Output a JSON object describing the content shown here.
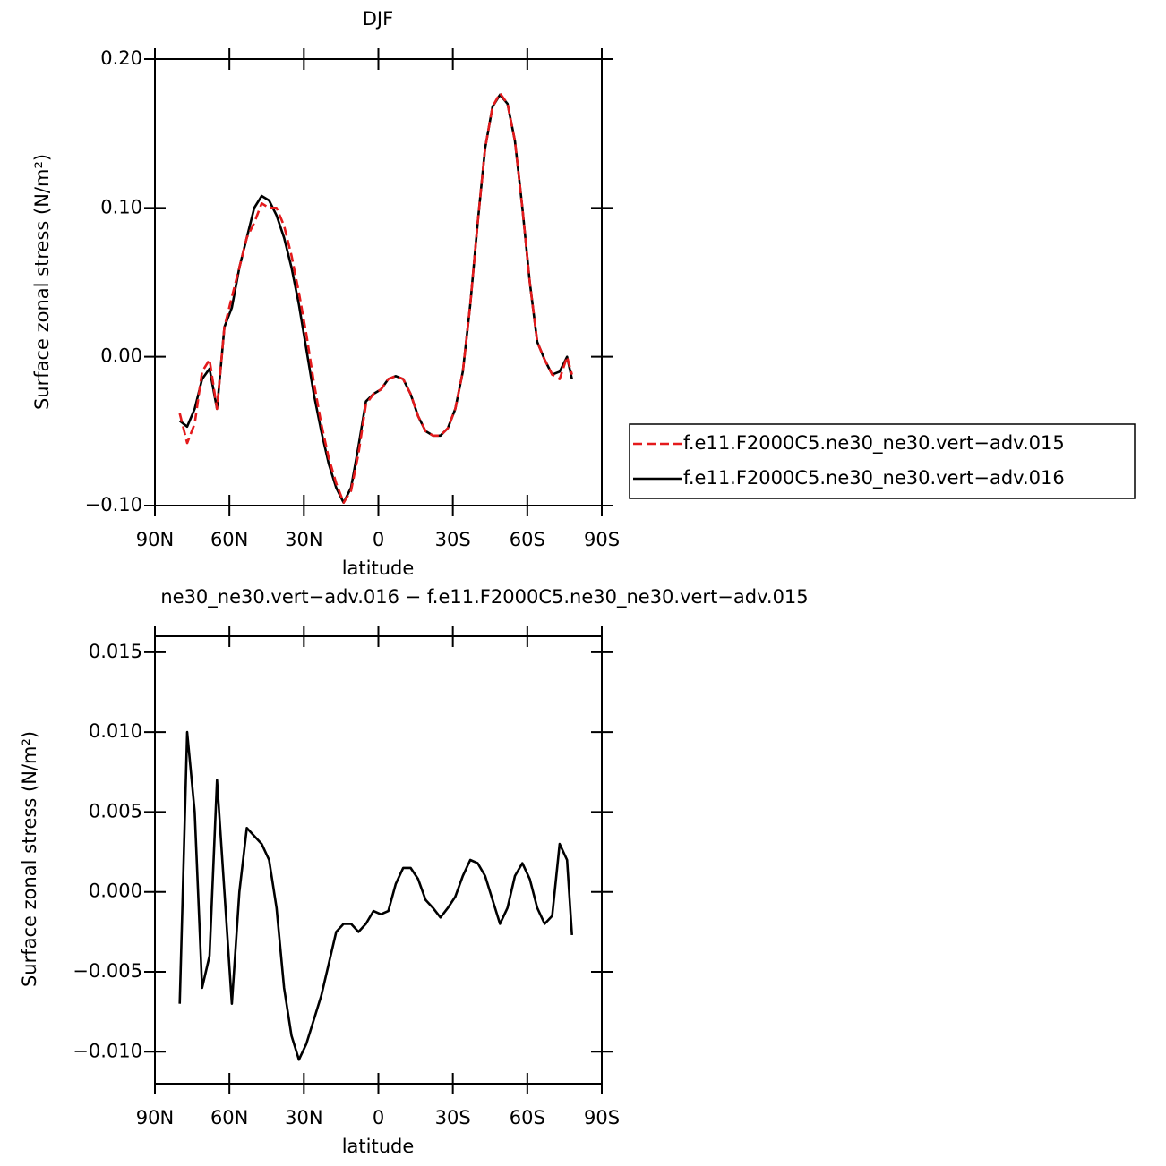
{
  "chart_data": [
    {
      "type": "line",
      "title": "DJF",
      "xlabel": "latitude",
      "ylabel": "Surface zonal stress (N/m²)",
      "x": [
        80,
        77,
        74,
        71,
        68,
        65,
        62,
        59,
        56,
        53,
        50,
        47,
        44,
        41,
        38,
        35,
        32,
        29,
        26,
        23,
        20,
        17,
        14,
        11,
        8,
        5,
        2,
        -1,
        -4,
        -7,
        -10,
        -13,
        -16,
        -19,
        -22,
        -25,
        -28,
        -31,
        -34,
        -37,
        -40,
        -43,
        -46,
        -49,
        -52,
        -55,
        -58,
        -61,
        -64,
        -67,
        -70,
        -73,
        -76,
        -78
      ],
      "xlim": [
        90,
        -90
      ],
      "xticks": [
        {
          "value": 90,
          "label": "90N"
        },
        {
          "value": 60,
          "label": "60N"
        },
        {
          "value": 30,
          "label": "30N"
        },
        0,
        {
          "value": -30,
          "label": "30S"
        },
        {
          "value": -60,
          "label": "60S"
        },
        {
          "value": -90,
          "label": "90S"
        }
      ],
      "ylim": [
        -0.1,
        0.2
      ],
      "yticks": [
        {
          "value": 0.2,
          "label": "0.20"
        },
        {
          "value": 0.1,
          "label": "0.10"
        },
        {
          "value": 0,
          "label": "0.00"
        },
        {
          "value": -0.1,
          "label": "−0.10"
        }
      ],
      "legend": "right",
      "series": [
        {
          "name": "f.e11.F2000C5.ne30_ne30.vert−adv.015",
          "color": "#e41a1c",
          "dash": true,
          "values": [
            -0.038,
            -0.058,
            -0.045,
            -0.01,
            -0.002,
            -0.035,
            0.02,
            0.04,
            0.06,
            0.08,
            0.09,
            0.103,
            0.1,
            0.1,
            0.088,
            0.068,
            0.043,
            0.015,
            -0.017,
            -0.045,
            -0.068,
            -0.085,
            -0.098,
            -0.09,
            -0.065,
            -0.032,
            -0.025,
            -0.022,
            -0.015,
            -0.013,
            -0.015,
            -0.025,
            -0.04,
            -0.05,
            -0.053,
            -0.053,
            -0.048,
            -0.035,
            -0.01,
            0.035,
            0.09,
            0.14,
            0.168,
            0.177,
            0.17,
            0.145,
            0.1,
            0.05,
            0.01,
            -0.002,
            -0.012,
            -0.015,
            0.0,
            -0.012
          ]
        },
        {
          "name": "f.e11.F2000C5.ne30_ne30.vert−adv.016",
          "color": "#000000",
          "dash": false,
          "values": [
            -0.043,
            -0.047,
            -0.035,
            -0.015,
            -0.008,
            -0.035,
            0.02,
            0.033,
            0.06,
            0.08,
            0.1,
            0.108,
            0.105,
            0.095,
            0.08,
            0.06,
            0.035,
            0.005,
            -0.025,
            -0.05,
            -0.072,
            -0.088,
            -0.098,
            -0.088,
            -0.06,
            -0.03,
            -0.025,
            -0.022,
            -0.015,
            -0.013,
            -0.015,
            -0.025,
            -0.04,
            -0.05,
            -0.053,
            -0.053,
            -0.048,
            -0.035,
            -0.01,
            0.035,
            0.09,
            0.14,
            0.168,
            0.176,
            0.17,
            0.145,
            0.1,
            0.05,
            0.01,
            -0.002,
            -0.012,
            -0.01,
            0.0,
            -0.015
          ]
        }
      ]
    },
    {
      "type": "line",
      "title": "ne30_ne30.vert−adv.016 − f.e11.F2000C5.ne30_ne30.vert−adv.015",
      "xlabel": "latitude",
      "ylabel": "Surface zonal stress (N/m²)",
      "x": [
        80,
        77,
        74,
        71,
        68,
        65,
        62,
        59,
        56,
        53,
        50,
        47,
        44,
        41,
        38,
        35,
        32,
        29,
        26,
        23,
        20,
        17,
        14,
        11,
        8,
        5,
        2,
        -1,
        -4,
        -7,
        -10,
        -13,
        -16,
        -19,
        -22,
        -25,
        -28,
        -31,
        -34,
        -37,
        -40,
        -43,
        -46,
        -49,
        -52,
        -55,
        -58,
        -61,
        -64,
        -67,
        -70,
        -73,
        -76,
        -78
      ],
      "xlim": [
        90,
        -90
      ],
      "xticks": [
        {
          "value": 90,
          "label": "90N"
        },
        {
          "value": 60,
          "label": "60N"
        },
        {
          "value": 30,
          "label": "30N"
        },
        0,
        {
          "value": -30,
          "label": "30S"
        },
        {
          "value": -60,
          "label": "60S"
        },
        {
          "value": -90,
          "label": "90S"
        }
      ],
      "ylim": [
        -0.012,
        0.016
      ],
      "yticks": [
        {
          "value": 0.015,
          "label": "0.015"
        },
        {
          "value": 0.01,
          "label": "0.010"
        },
        {
          "value": 0.005,
          "label": "0.005"
        },
        {
          "value": 0,
          "label": "0.000"
        },
        {
          "value": -0.005,
          "label": "−0.005"
        },
        {
          "value": -0.01,
          "label": "−0.010"
        }
      ],
      "series": [
        {
          "color": "#000000",
          "dash": false,
          "values": [
            -0.007,
            0.01,
            0.005,
            -0.006,
            -0.004,
            0.007,
            0.0,
            -0.007,
            0.0,
            0.004,
            0.0035,
            0.003,
            0.002,
            -0.001,
            -0.006,
            -0.009,
            -0.0105,
            -0.0095,
            -0.008,
            -0.0065,
            -0.0045,
            -0.0025,
            -0.002,
            -0.002,
            -0.0025,
            -0.002,
            -0.0012,
            -0.0014,
            -0.0012,
            0.0005,
            0.0015,
            0.0015,
            0.0008,
            -0.0005,
            -0.001,
            -0.0016,
            -0.001,
            -0.0003,
            0.001,
            0.002,
            0.0018,
            0.001,
            -0.0005,
            -0.002,
            -0.001,
            0.001,
            0.0018,
            0.0008,
            -0.001,
            -0.002,
            -0.0015,
            0.003,
            0.002,
            -0.0027
          ]
        }
      ]
    }
  ]
}
